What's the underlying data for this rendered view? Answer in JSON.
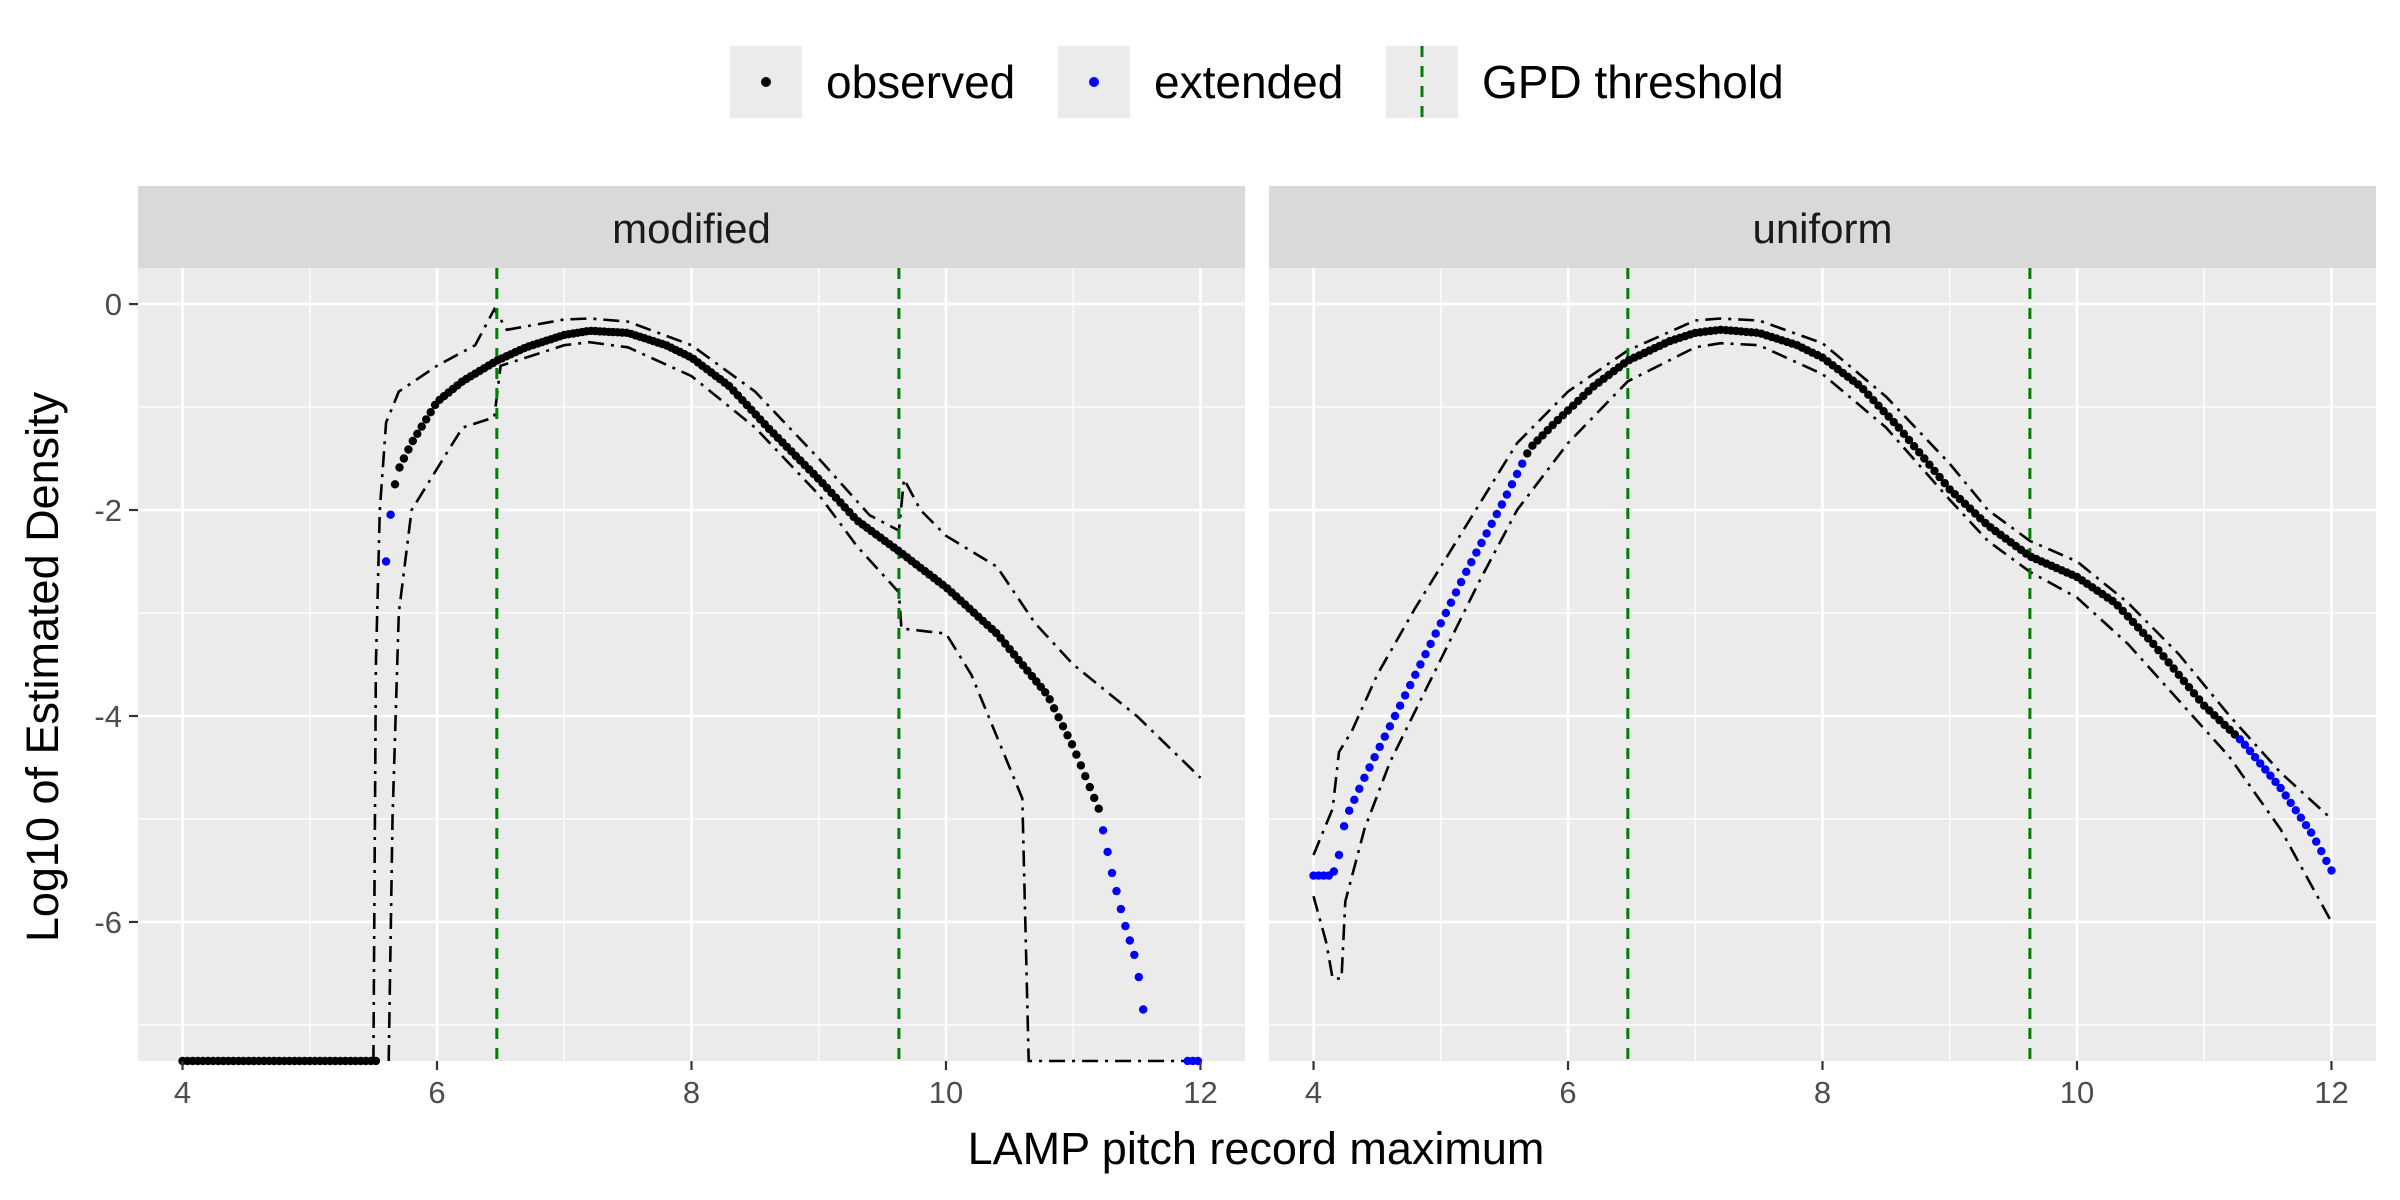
{
  "chart_data": {
    "type": "scatter",
    "xlabel": "LAMP pitch record maximum",
    "ylabel": "Log10 of Estimated Density",
    "xlim": [
      3.65,
      12.35
    ],
    "ylim": [
      -7.35,
      0.35
    ],
    "x_ticks": [
      4,
      6,
      8,
      10,
      12
    ],
    "y_ticks": [
      0,
      -2,
      -4,
      -6
    ],
    "grid": true,
    "legend_position": "top",
    "legend": [
      {
        "label": "observed",
        "symbol": "point",
        "color": "#000000"
      },
      {
        "label": "extended",
        "symbol": "point",
        "color": "#0000ff"
      },
      {
        "label": "GPD threshold",
        "symbol": "dashed-vline",
        "color": "#008000"
      }
    ],
    "colors": {
      "observed": "#000000",
      "extended": "#0000ff",
      "threshold": "#008000",
      "bands": "#000000"
    },
    "panels": [
      {
        "name": "modified",
        "thresholds": [
          6.47,
          9.63
        ],
        "density_curve": [
          [
            5.6,
            -2.5
          ],
          [
            5.65,
            -1.85
          ],
          [
            5.7,
            -1.6
          ],
          [
            5.8,
            -1.35
          ],
          [
            5.9,
            -1.15
          ],
          [
            6.0,
            -0.95
          ],
          [
            6.2,
            -0.75
          ],
          [
            6.47,
            -0.55
          ],
          [
            6.7,
            -0.42
          ],
          [
            7.0,
            -0.3
          ],
          [
            7.2,
            -0.26
          ],
          [
            7.5,
            -0.28
          ],
          [
            7.8,
            -0.4
          ],
          [
            8.0,
            -0.52
          ],
          [
            8.3,
            -0.8
          ],
          [
            8.6,
            -1.2
          ],
          [
            9.0,
            -1.7
          ],
          [
            9.3,
            -2.1
          ],
          [
            9.63,
            -2.4
          ],
          [
            10.0,
            -2.75
          ],
          [
            10.4,
            -3.2
          ],
          [
            10.8,
            -3.8
          ],
          [
            11.0,
            -4.3
          ],
          [
            11.2,
            -4.9
          ],
          [
            11.3,
            -5.5
          ],
          [
            11.4,
            -6.0
          ],
          [
            11.5,
            -6.4
          ],
          [
            11.55,
            -6.85
          ]
        ],
        "extended_segments": [
          [
            5.6,
            5.66
          ],
          [
            11.22,
            11.6
          ]
        ],
        "floor_points_observed": [
          [
            4.0,
            5.55
          ],
          [
            11.9,
            12.0
          ]
        ],
        "floor_level": -7.35,
        "upper_band": [
          [
            5.5,
            -7.35
          ],
          [
            5.52,
            -3.5
          ],
          [
            5.55,
            -2.0
          ],
          [
            5.6,
            -1.15
          ],
          [
            5.7,
            -0.85
          ],
          [
            6.0,
            -0.6
          ],
          [
            6.3,
            -0.4
          ],
          [
            6.45,
            -0.05
          ],
          [
            6.55,
            -0.25
          ],
          [
            7.0,
            -0.15
          ],
          [
            7.2,
            -0.14
          ],
          [
            7.5,
            -0.17
          ],
          [
            8.0,
            -0.4
          ],
          [
            8.5,
            -0.85
          ],
          [
            9.0,
            -1.5
          ],
          [
            9.4,
            -2.05
          ],
          [
            9.63,
            -2.2
          ],
          [
            9.67,
            -1.7
          ],
          [
            9.8,
            -2.0
          ],
          [
            10.0,
            -2.25
          ],
          [
            10.4,
            -2.55
          ],
          [
            10.7,
            -3.1
          ],
          [
            11.0,
            -3.5
          ],
          [
            11.5,
            -4.0
          ],
          [
            12.0,
            -4.6
          ]
        ],
        "lower_band": [
          [
            5.62,
            -7.35
          ],
          [
            5.65,
            -5.0
          ],
          [
            5.7,
            -3.0
          ],
          [
            5.8,
            -2.0
          ],
          [
            6.0,
            -1.6
          ],
          [
            6.2,
            -1.2
          ],
          [
            6.45,
            -1.1
          ],
          [
            6.5,
            -0.6
          ],
          [
            7.0,
            -0.4
          ],
          [
            7.2,
            -0.37
          ],
          [
            7.5,
            -0.42
          ],
          [
            8.0,
            -0.7
          ],
          [
            8.5,
            -1.2
          ],
          [
            9.0,
            -1.85
          ],
          [
            9.3,
            -2.35
          ],
          [
            9.63,
            -2.8
          ],
          [
            9.65,
            -3.15
          ],
          [
            10.0,
            -3.2
          ],
          [
            10.2,
            -3.6
          ],
          [
            10.5,
            -4.5
          ],
          [
            10.6,
            -4.8
          ],
          [
            10.65,
            -7.35
          ],
          [
            12.0,
            -7.35
          ]
        ]
      },
      {
        "name": "uniform",
        "thresholds": [
          6.47,
          9.63
        ],
        "density_curve": [
          [
            4.0,
            -5.55
          ],
          [
            4.15,
            -5.55
          ],
          [
            4.2,
            -5.35
          ],
          [
            4.25,
            -5.0
          ],
          [
            4.4,
            -4.6
          ],
          [
            4.6,
            -4.1
          ],
          [
            4.8,
            -3.6
          ],
          [
            5.0,
            -3.1
          ],
          [
            5.2,
            -2.6
          ],
          [
            5.5,
            -1.9
          ],
          [
            5.7,
            -1.4
          ],
          [
            5.9,
            -1.15
          ],
          [
            6.2,
            -0.8
          ],
          [
            6.47,
            -0.55
          ],
          [
            6.8,
            -0.36
          ],
          [
            7.0,
            -0.28
          ],
          [
            7.2,
            -0.25
          ],
          [
            7.5,
            -0.28
          ],
          [
            7.8,
            -0.4
          ],
          [
            8.0,
            -0.52
          ],
          [
            8.3,
            -0.8
          ],
          [
            8.6,
            -1.2
          ],
          [
            9.0,
            -1.8
          ],
          [
            9.3,
            -2.15
          ],
          [
            9.63,
            -2.45
          ],
          [
            10.0,
            -2.65
          ],
          [
            10.3,
            -2.9
          ],
          [
            10.6,
            -3.3
          ],
          [
            11.0,
            -3.9
          ],
          [
            11.3,
            -4.25
          ],
          [
            11.6,
            -4.7
          ],
          [
            11.85,
            -5.15
          ],
          [
            12.0,
            -5.5
          ]
        ],
        "extended_segments": [
          [
            4.0,
            5.66
          ],
          [
            11.28,
            12.0
          ]
        ],
        "upper_band": [
          [
            4.0,
            -5.35
          ],
          [
            4.15,
            -4.9
          ],
          [
            4.2,
            -4.35
          ],
          [
            4.3,
            -4.15
          ],
          [
            4.5,
            -3.6
          ],
          [
            4.8,
            -2.95
          ],
          [
            5.0,
            -2.55
          ],
          [
            5.3,
            -1.95
          ],
          [
            5.6,
            -1.35
          ],
          [
            6.0,
            -0.85
          ],
          [
            6.47,
            -0.45
          ],
          [
            7.0,
            -0.16
          ],
          [
            7.2,
            -0.14
          ],
          [
            7.5,
            -0.16
          ],
          [
            8.0,
            -0.38
          ],
          [
            8.5,
            -0.9
          ],
          [
            9.0,
            -1.55
          ],
          [
            9.3,
            -2.0
          ],
          [
            9.63,
            -2.3
          ],
          [
            10.0,
            -2.5
          ],
          [
            10.4,
            -2.9
          ],
          [
            10.8,
            -3.4
          ],
          [
            11.2,
            -4.0
          ],
          [
            11.6,
            -4.55
          ],
          [
            12.0,
            -5.0
          ]
        ],
        "lower_band": [
          [
            4.0,
            -5.75
          ],
          [
            4.1,
            -6.2
          ],
          [
            4.15,
            -6.55
          ],
          [
            4.22,
            -6.55
          ],
          [
            4.25,
            -5.8
          ],
          [
            4.4,
            -5.1
          ],
          [
            4.6,
            -4.45
          ],
          [
            4.8,
            -3.95
          ],
          [
            5.0,
            -3.45
          ],
          [
            5.3,
            -2.7
          ],
          [
            5.6,
            -2.0
          ],
          [
            6.0,
            -1.35
          ],
          [
            6.47,
            -0.75
          ],
          [
            7.0,
            -0.42
          ],
          [
            7.2,
            -0.38
          ],
          [
            7.5,
            -0.4
          ],
          [
            8.0,
            -0.68
          ],
          [
            8.5,
            -1.2
          ],
          [
            9.0,
            -1.9
          ],
          [
            9.3,
            -2.3
          ],
          [
            9.63,
            -2.6
          ],
          [
            10.0,
            -2.85
          ],
          [
            10.4,
            -3.3
          ],
          [
            10.8,
            -3.85
          ],
          [
            11.2,
            -4.4
          ],
          [
            11.6,
            -5.1
          ],
          [
            12.0,
            -6.0
          ]
        ]
      }
    ]
  }
}
